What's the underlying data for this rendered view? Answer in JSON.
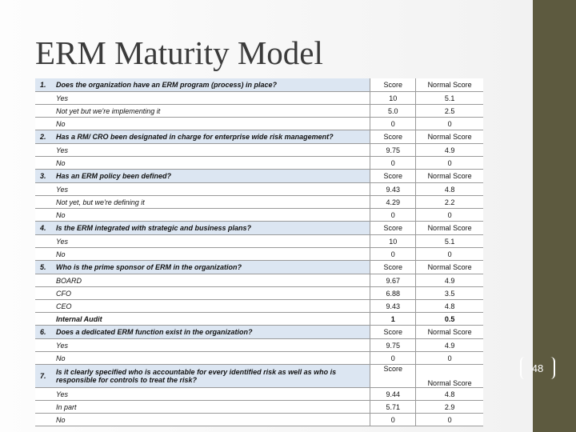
{
  "header": {
    "title": "ERM Maturity Model"
  },
  "page_number": "48",
  "table": {
    "questions": [
      {
        "number": "1.",
        "text": "Does the organization have an ERM program (process) in place?",
        "score_header": "Score",
        "normal_header": "Normal Score",
        "options": [
          {
            "label": "Yes",
            "score": "10",
            "normal": "5.1"
          },
          {
            "label": "Not yet but we're implementing it",
            "score": "5.0",
            "normal": "2.5"
          },
          {
            "label": "No",
            "score": "0",
            "normal": "0"
          }
        ]
      },
      {
        "number": "2.",
        "text": "Has a RM/ CRO been designated in charge for enterprise wide risk management?",
        "score_header": "Score",
        "normal_header": "Normal Score",
        "options": [
          {
            "label": "Yes",
            "score": "9.75",
            "normal": "4.9"
          },
          {
            "label": "No",
            "score": "0",
            "normal": "0"
          }
        ]
      },
      {
        "number": "3.",
        "text": "Has an ERM policy been defined?",
        "score_header": "Score",
        "normal_header": "Normal Score",
        "options": [
          {
            "label": "Yes",
            "score": "9.43",
            "normal": "4.8"
          },
          {
            "label": "Not yet, but we're defining it",
            "score": "4.29",
            "normal": "2.2"
          },
          {
            "label": "No",
            "score": "0",
            "normal": "0"
          }
        ]
      },
      {
        "number": "4.",
        "text": "Is the ERM integrated with strategic and business plans?",
        "score_header": "Score",
        "normal_header": "Normal Score",
        "options": [
          {
            "label": "Yes",
            "score": "10",
            "normal": "5.1"
          },
          {
            "label": "No",
            "score": "0",
            "normal": "0"
          }
        ]
      },
      {
        "number": "5.",
        "text": "Who is the prime sponsor of ERM in the organization?",
        "score_header": "Score",
        "normal_header": "Normal Score",
        "options": [
          {
            "label": "BOARD",
            "score": "9.67",
            "normal": "4.9"
          },
          {
            "label": "CFO",
            "score": "6.88",
            "normal": "3.5"
          },
          {
            "label": "CEO",
            "score": "9.43",
            "normal": "4.8"
          },
          {
            "label": "Internal Audit",
            "score": "1",
            "normal": "0.5"
          }
        ]
      },
      {
        "number": "6.",
        "text": "Does a dedicated ERM function exist in the organization?",
        "score_header": "Score",
        "normal_header": "Normal Score",
        "options": [
          {
            "label": "Yes",
            "score": "9.75",
            "normal": "4.9"
          },
          {
            "label": "No",
            "score": "0",
            "normal": "0"
          }
        ]
      },
      {
        "number": "7.",
        "text": "Is it clearly specified who is accountable for every identified risk as well as who is responsible for controls to treat the risk?",
        "score_header": "Score",
        "normal_header": "Normal Score",
        "options": [
          {
            "label": "Yes",
            "score": "9.44",
            "normal": "4.8"
          },
          {
            "label": "In part",
            "score": "5.71",
            "normal": "2.9"
          },
          {
            "label": "No",
            "score": "0",
            "normal": "0"
          }
        ]
      }
    ]
  }
}
